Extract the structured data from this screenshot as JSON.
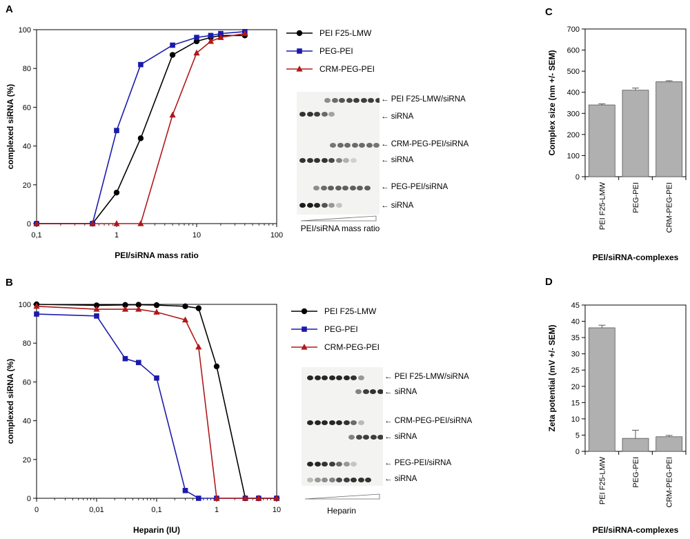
{
  "panel_labels": {
    "A": "A",
    "B": "B",
    "C": "C",
    "D": "D"
  },
  "colors": {
    "pei": "#000000",
    "peg": "#1a1aad",
    "crm": "#b01818",
    "bar_fill": "#b0b0b0"
  },
  "gel_A": {
    "labels": [
      "← PEI F25-LMW/siRNA",
      "← siRNA",
      "← CRM-PEG-PEI/siRNA",
      "← siRNA",
      "← PEG-PEI/siRNA",
      "← siRNA"
    ],
    "caption": "PEI/siRNA mass ratio"
  },
  "gel_B": {
    "labels": [
      "← PEI F25-LMW/siRNA",
      "← siRNA",
      "← CRM-PEG-PEI/siRNA",
      "← siRNA",
      "← PEG-PEI/siRNA",
      "← siRNA"
    ],
    "caption": "Heparin"
  },
  "chart_data": [
    {
      "id": "A",
      "type": "line",
      "x_scale": "log",
      "title": "",
      "xlabel": "PEI/siRNA mass ratio",
      "ylabel": "complexed siRNA (%)",
      "xlim": [
        0.1,
        100
      ],
      "ylim": [
        0,
        100
      ],
      "x_ticks": [
        0.1,
        1,
        10,
        100
      ],
      "x_tick_labels": [
        "0,1",
        "1",
        "10",
        "100"
      ],
      "y_ticks": [
        0,
        20,
        40,
        60,
        80,
        100
      ],
      "y_tick_labels": [
        "0",
        "20",
        "40",
        "60",
        "80",
        "100"
      ],
      "legend_position": "right",
      "series": [
        {
          "name": "PEI F25-LMW",
          "color": "#000000",
          "marker": "circle",
          "x": [
            0.1,
            0.5,
            1,
            2,
            5,
            10,
            15,
            20,
            40
          ],
          "values": [
            0,
            0,
            16,
            44,
            87,
            94,
            96,
            97,
            97
          ]
        },
        {
          "name": "PEG-PEI",
          "color": "#1a1aad",
          "marker": "square",
          "x": [
            0.1,
            0.5,
            1,
            2,
            5,
            10,
            15,
            20,
            40
          ],
          "values": [
            0,
            0,
            48,
            82,
            92,
            96,
            97,
            98,
            99
          ]
        },
        {
          "name": "CRM-PEG-PEI",
          "color": "#b01818",
          "marker": "triangle",
          "x": [
            0.1,
            0.5,
            1,
            2,
            5,
            10,
            15,
            20,
            40
          ],
          "values": [
            0,
            0,
            0,
            0,
            56,
            88,
            94,
            96,
            98
          ]
        }
      ]
    },
    {
      "id": "B",
      "type": "line",
      "x_scale": "log",
      "title": "",
      "xlabel": "Heparin (IU)",
      "ylabel": "complexed siRNA (%)",
      "xlim": [
        0.001,
        10
      ],
      "ylim": [
        0,
        100
      ],
      "x_ticks": [
        0.001,
        0.01,
        0.1,
        1,
        10
      ],
      "x_tick_labels": [
        "0",
        "0,01",
        "0,1",
        "1",
        "10"
      ],
      "y_ticks": [
        0,
        20,
        40,
        60,
        80,
        100
      ],
      "y_tick_labels": [
        "0",
        "20",
        "40",
        "60",
        "80",
        "100"
      ],
      "legend_position": "right",
      "series": [
        {
          "name": "PEI F25-LMW",
          "color": "#000000",
          "marker": "circle",
          "x": [
            0.001,
            0.01,
            0.03,
            0.05,
            0.1,
            0.3,
            0.5,
            1,
            3,
            5,
            10
          ],
          "values": [
            100,
            99.5,
            99.7,
            99.8,
            99.6,
            99,
            98,
            68,
            0,
            0,
            0
          ]
        },
        {
          "name": "PEG-PEI",
          "color": "#1a1aad",
          "marker": "square",
          "x": [
            0.001,
            0.01,
            0.03,
            0.05,
            0.1,
            0.3,
            0.5,
            1,
            3,
            5,
            10
          ],
          "values": [
            95,
            94,
            72,
            70,
            62,
            4,
            0,
            0,
            0,
            0,
            0
          ]
        },
        {
          "name": "CRM-PEG-PEI",
          "color": "#b01818",
          "marker": "triangle",
          "x": [
            0.001,
            0.01,
            0.03,
            0.05,
            0.1,
            0.3,
            0.5,
            1,
            3,
            5,
            10
          ],
          "values": [
            99,
            97.5,
            97.5,
            97.5,
            96,
            92,
            78,
            0,
            0,
            0,
            0
          ]
        }
      ]
    },
    {
      "id": "C",
      "type": "bar",
      "title": "",
      "xlabel": "PEI/siRNA-complexes",
      "ylabel": "Complex size (nm +/- SEM)",
      "categories": [
        "PEI F25-LMW",
        "PEG-PEI",
        "CRM-PEG-PEI"
      ],
      "values": [
        340,
        410,
        450
      ],
      "errors": [
        5,
        10,
        5
      ],
      "ylim": [
        0,
        700
      ],
      "y_ticks": [
        0,
        100,
        200,
        300,
        400,
        500,
        600,
        700
      ],
      "y_tick_labels": [
        "0",
        "100",
        "200",
        "300",
        "400",
        "500",
        "600",
        "700"
      ]
    },
    {
      "id": "D",
      "type": "bar",
      "title": "",
      "xlabel": "PEI/siRNA-complexes",
      "ylabel": "Zeta potential (mV +/- SEM)",
      "categories": [
        "PEI F25-LMW",
        "PEG-PEI",
        "CRM-PEG-PEI"
      ],
      "values": [
        38,
        4,
        4.5
      ],
      "errors": [
        0.8,
        2.5,
        0.4
      ],
      "ylim": [
        0,
        45
      ],
      "y_ticks": [
        0,
        5,
        10,
        15,
        20,
        25,
        30,
        35,
        40,
        45
      ],
      "y_tick_labels": [
        "0",
        "5",
        "10",
        "15",
        "20",
        "25",
        "30",
        "35",
        "40",
        "45"
      ]
    }
  ]
}
